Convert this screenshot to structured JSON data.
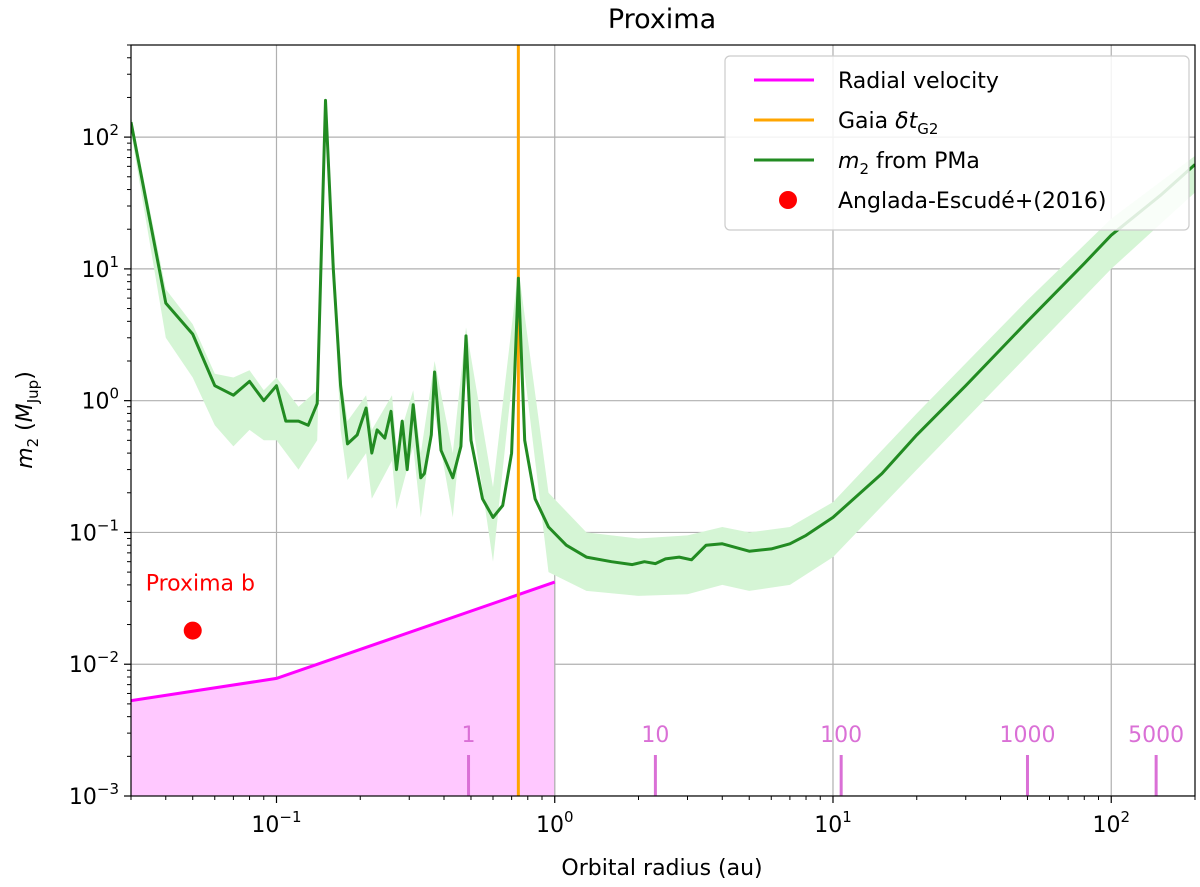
{
  "chart_data": {
    "type": "line",
    "title": "Proxima",
    "xlabel": "Orbital radius (au)",
    "ylabel_main": "m",
    "ylabel_sub": "2",
    "ylabel_paren_open": " (",
    "ylabel_M": "M",
    "ylabel_Msub": "Jup",
    "ylabel_paren_close": ")",
    "x_scale": "log",
    "y_scale": "log",
    "xlim": [
      0.03,
      200
    ],
    "ylim": [
      0.001,
      500
    ],
    "grid": true,
    "legend_position": "top-right",
    "x_ticks": [
      {
        "value": 0.1,
        "base": "10",
        "exp": "−1"
      },
      {
        "value": 1,
        "base": "10",
        "exp": "0"
      },
      {
        "value": 10,
        "base": "10",
        "exp": "1"
      },
      {
        "value": 100,
        "base": "10",
        "exp": "2"
      }
    ],
    "y_ticks": [
      {
        "value": 0.001,
        "base": "10",
        "exp": "−3"
      },
      {
        "value": 0.01,
        "base": "10",
        "exp": "−2"
      },
      {
        "value": 0.1,
        "base": "10",
        "exp": "−1"
      },
      {
        "value": 1,
        "base": "10",
        "exp": "0"
      },
      {
        "value": 10,
        "base": "10",
        "exp": "1"
      },
      {
        "value": 100,
        "base": "10",
        "exp": "2"
      }
    ],
    "legend": [
      {
        "label": "Radial velocity",
        "color": "#ff00ff",
        "kind": "line"
      },
      {
        "label_pre": "Gaia ",
        "label_italic": "δt",
        "label_sub": "G2",
        "color": "#ffa500",
        "kind": "line"
      },
      {
        "label_italic": "m",
        "label_sub": "2",
        "label_post": " from PMa",
        "color": "#228b22",
        "kind": "line"
      },
      {
        "label": "Anglada-Escudé+(2016)",
        "color": "#ff0000",
        "kind": "dot"
      }
    ],
    "series": [
      {
        "name": "m2 from PMa",
        "color": "#228b22",
        "band_color": "#d5f5d5",
        "points": [
          [
            0.03,
            130
          ],
          [
            0.04,
            5.5
          ],
          [
            0.05,
            3.2
          ],
          [
            0.06,
            1.3
          ],
          [
            0.07,
            1.1
          ],
          [
            0.08,
            1.4
          ],
          [
            0.09,
            1.0
          ],
          [
            0.1,
            1.3
          ],
          [
            0.108,
            0.7
          ],
          [
            0.12,
            0.7
          ],
          [
            0.13,
            0.65
          ],
          [
            0.14,
            0.95
          ],
          [
            0.15,
            190
          ],
          [
            0.16,
            10
          ],
          [
            0.17,
            1.3
          ],
          [
            0.18,
            0.47
          ],
          [
            0.195,
            0.55
          ],
          [
            0.21,
            0.88
          ],
          [
            0.22,
            0.4
          ],
          [
            0.23,
            0.6
          ],
          [
            0.245,
            0.52
          ],
          [
            0.258,
            0.83
          ],
          [
            0.27,
            0.3
          ],
          [
            0.283,
            0.7
          ],
          [
            0.295,
            0.3
          ],
          [
            0.31,
            0.93
          ],
          [
            0.33,
            0.26
          ],
          [
            0.34,
            0.28
          ],
          [
            0.36,
            0.55
          ],
          [
            0.37,
            1.65
          ],
          [
            0.39,
            0.42
          ],
          [
            0.43,
            0.26
          ],
          [
            0.46,
            0.45
          ],
          [
            0.48,
            3.1
          ],
          [
            0.5,
            0.5
          ],
          [
            0.55,
            0.18
          ],
          [
            0.6,
            0.13
          ],
          [
            0.65,
            0.16
          ],
          [
            0.7,
            0.4
          ],
          [
            0.74,
            8.5
          ],
          [
            0.78,
            0.5
          ],
          [
            0.85,
            0.18
          ],
          [
            0.95,
            0.11
          ],
          [
            1.1,
            0.08
          ],
          [
            1.3,
            0.065
          ],
          [
            1.6,
            0.06
          ],
          [
            1.9,
            0.057
          ],
          [
            2.1,
            0.06
          ],
          [
            2.3,
            0.058
          ],
          [
            2.5,
            0.063
          ],
          [
            2.8,
            0.065
          ],
          [
            3.1,
            0.062
          ],
          [
            3.5,
            0.08
          ],
          [
            4.0,
            0.082
          ],
          [
            5.0,
            0.072
          ],
          [
            6.0,
            0.075
          ],
          [
            7.0,
            0.082
          ],
          [
            8.0,
            0.095
          ],
          [
            10,
            0.13
          ],
          [
            15,
            0.28
          ],
          [
            20,
            0.55
          ],
          [
            30,
            1.3
          ],
          [
            50,
            4.0
          ],
          [
            80,
            11
          ],
          [
            100,
            18
          ],
          [
            150,
            36
          ],
          [
            200,
            62
          ]
        ],
        "band": [
          [
            0.03,
            110,
            145
          ],
          [
            0.04,
            3.0,
            7.0
          ],
          [
            0.05,
            1.5,
            3.8
          ],
          [
            0.06,
            0.65,
            1.6
          ],
          [
            0.07,
            0.45,
            1.5
          ],
          [
            0.08,
            0.6,
            1.7
          ],
          [
            0.09,
            0.5,
            1.2
          ],
          [
            0.1,
            0.5,
            1.5
          ],
          [
            0.12,
            0.3,
            0.9
          ],
          [
            0.14,
            0.5,
            1.2
          ],
          [
            0.15,
            130,
            200
          ],
          [
            0.17,
            0.6,
            1.6
          ],
          [
            0.18,
            0.25,
            0.7
          ],
          [
            0.21,
            0.4,
            1.1
          ],
          [
            0.22,
            0.18,
            0.6
          ],
          [
            0.26,
            0.35,
            1.1
          ],
          [
            0.27,
            0.15,
            0.45
          ],
          [
            0.31,
            0.45,
            1.2
          ],
          [
            0.33,
            0.13,
            0.4
          ],
          [
            0.37,
            0.8,
            2.0
          ],
          [
            0.43,
            0.13,
            0.4
          ],
          [
            0.48,
            1.5,
            3.6
          ],
          [
            0.6,
            0.06,
            0.22
          ],
          [
            0.74,
            4,
            10
          ],
          [
            0.95,
            0.05,
            0.2
          ],
          [
            1.3,
            0.036,
            0.1
          ],
          [
            2.0,
            0.033,
            0.09
          ],
          [
            3.0,
            0.034,
            0.095
          ],
          [
            4.0,
            0.04,
            0.11
          ],
          [
            5.0,
            0.036,
            0.1
          ],
          [
            7.0,
            0.04,
            0.11
          ],
          [
            10,
            0.065,
            0.17
          ],
          [
            20,
            0.3,
            0.8
          ],
          [
            50,
            2.2,
            5.8
          ],
          [
            100,
            10,
            24
          ],
          [
            200,
            38,
            72
          ]
        ]
      },
      {
        "name": "Radial velocity",
        "color": "#ff00ff",
        "fill_color": "#ffc8ff",
        "points": [
          [
            0.03,
            0.0053
          ],
          [
            0.1,
            0.0078
          ],
          [
            1.0,
            0.042
          ]
        ]
      }
    ],
    "vertical_line": {
      "name": "Gaia δtG2",
      "x": 0.74,
      "color": "#ffa500"
    },
    "point": {
      "name": "Anglada-Escudé+(2016)",
      "x": 0.05,
      "y": 0.018,
      "color": "#ff0000",
      "label": "Proxima b"
    },
    "period_markers": [
      {
        "label": "1",
        "x": 0.49
      },
      {
        "label": "10",
        "x": 2.3
      },
      {
        "label": "100",
        "x": 10.7
      },
      {
        "label": "1000",
        "x": 50
      },
      {
        "label": "5000",
        "x": 145
      }
    ],
    "period_marker_color": "#da70d6"
  }
}
